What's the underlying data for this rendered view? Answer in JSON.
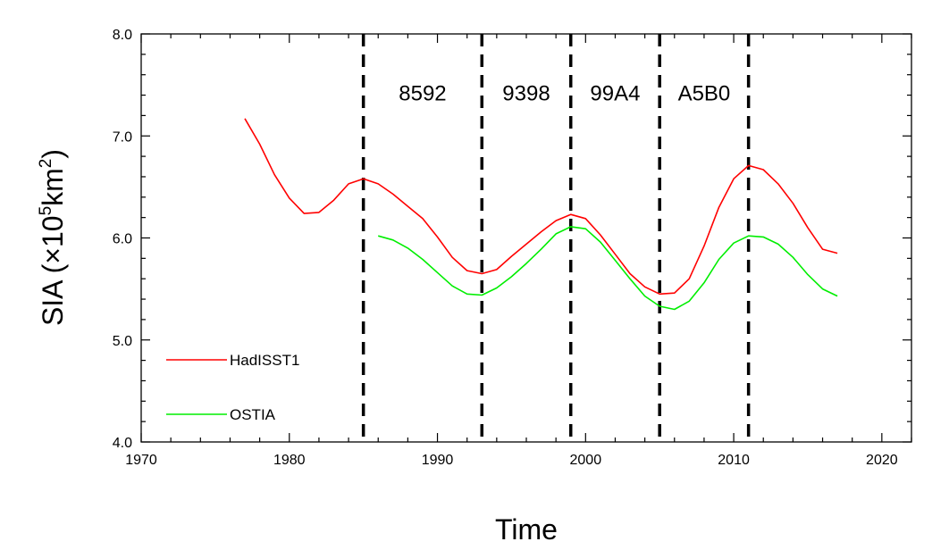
{
  "chart_data": {
    "type": "line",
    "xlabel": "Time",
    "ylabel": {
      "prefix": "SIA (×10",
      "sup1": "5",
      "mid": "km",
      "sup2": "2",
      "suffix": ")"
    },
    "xlim": [
      1970,
      2022
    ],
    "ylim": [
      4.0,
      8.0
    ],
    "xticks": [
      1970,
      1980,
      1990,
      2000,
      2010,
      2020
    ],
    "yticks": [
      4.0,
      5.0,
      6.0,
      7.0,
      8.0
    ],
    "ytick_labels": [
      "4.0",
      "5.0",
      "6.0",
      "7.0",
      "8.0"
    ],
    "grid": false,
    "legend_position": "bottom-left",
    "vlines": [
      1985,
      1993,
      1999,
      2005,
      2011
    ],
    "period_labels": [
      {
        "text": "8592",
        "x": 1989
      },
      {
        "text": "9398",
        "x": 1996
      },
      {
        "text": "99A4",
        "x": 2002
      },
      {
        "text": "A5B0",
        "x": 2008
      }
    ],
    "series": [
      {
        "name": "HadISST1",
        "color": "#ff0000",
        "x": [
          1977,
          1978,
          1979,
          1980,
          1981,
          1982,
          1983,
          1984,
          1985,
          1986,
          1987,
          1988,
          1989,
          1990,
          1991,
          1992,
          1993,
          1994,
          1995,
          1996,
          1997,
          1998,
          1999,
          2000,
          2001,
          2002,
          2003,
          2004,
          2005,
          2006,
          2007,
          2008,
          2009,
          2010,
          2011,
          2012,
          2013,
          2014,
          2015,
          2016,
          2017
        ],
        "y": [
          7.17,
          6.92,
          6.62,
          6.39,
          6.24,
          6.25,
          6.37,
          6.53,
          6.58,
          6.53,
          6.43,
          6.31,
          6.19,
          6.01,
          5.81,
          5.68,
          5.65,
          5.69,
          5.82,
          5.94,
          6.06,
          6.17,
          6.23,
          6.19,
          6.03,
          5.84,
          5.65,
          5.52,
          5.45,
          5.46,
          5.6,
          5.92,
          6.3,
          6.58,
          6.71,
          6.67,
          6.53,
          6.34,
          6.1,
          5.89,
          5.85
        ]
      },
      {
        "name": "OSTIA",
        "color": "#00ee00",
        "x": [
          1986,
          1987,
          1988,
          1989,
          1990,
          1991,
          1992,
          1993,
          1994,
          1995,
          1996,
          1997,
          1998,
          1999,
          2000,
          2001,
          2002,
          2003,
          2004,
          2005,
          2006,
          2007,
          2008,
          2009,
          2010,
          2011,
          2012,
          2013,
          2014,
          2015,
          2016,
          2017
        ],
        "y": [
          6.02,
          5.98,
          5.9,
          5.79,
          5.66,
          5.53,
          5.45,
          5.44,
          5.51,
          5.62,
          5.75,
          5.89,
          6.04,
          6.11,
          6.09,
          5.96,
          5.78,
          5.6,
          5.43,
          5.33,
          5.3,
          5.38,
          5.56,
          5.79,
          5.95,
          6.02,
          6.01,
          5.94,
          5.81,
          5.64,
          5.5,
          5.43
        ]
      }
    ]
  }
}
